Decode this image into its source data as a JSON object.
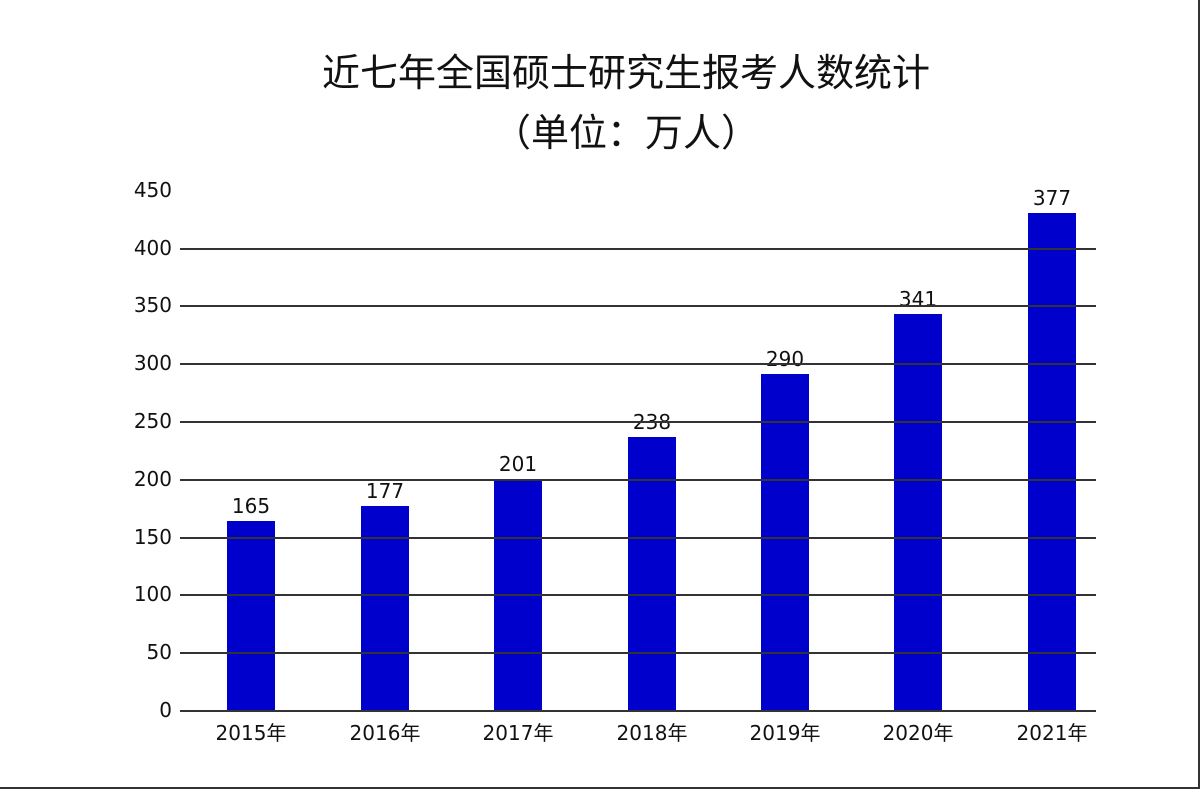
{
  "chart_data": {
    "type": "bar",
    "title": "近七年全国硕士研究生报考人数统计",
    "subtitle": "（单位：万人）",
    "xlabel": "",
    "ylabel": "",
    "categories": [
      "2015年",
      "2016年",
      "2017年",
      "2018年",
      "2019年",
      "2020年",
      "2021年"
    ],
    "values": [
      165,
      177,
      201,
      238,
      290,
      341,
      377
    ],
    "data_labels": [
      "165",
      "177",
      "201",
      "238",
      "290",
      "341",
      "377"
    ],
    "yticks": [
      "0",
      "50",
      "100",
      "150",
      "200",
      "250",
      "300",
      "350",
      "400",
      "450"
    ],
    "ylim": [
      0,
      450
    ],
    "grid": true,
    "legend": null,
    "bar_color": "#0000CC"
  }
}
